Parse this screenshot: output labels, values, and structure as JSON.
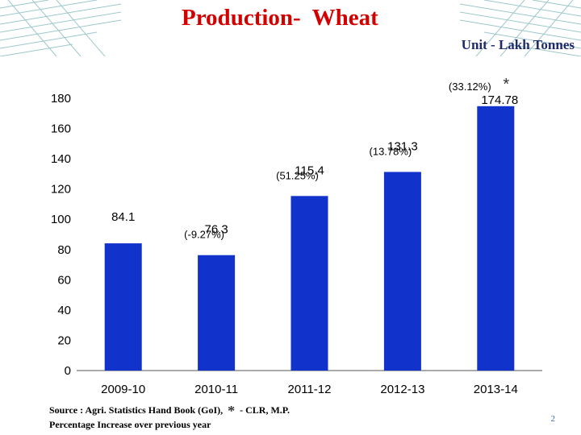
{
  "slide": {
    "title": "Production-  Wheat",
    "unit": "Unit - Lakh Tonnes",
    "source_prefix": "Source  : Agri. Statistics Hand Book (GoI),",
    "source_star": "*",
    "source_suffix": "- CLR, M.P.",
    "note": "Percentage Increase over previous year",
    "page_number": "2"
  },
  "colors": {
    "bar": "#1133cc",
    "title": "#d40000",
    "pattern": "#9cc8cc"
  },
  "chart_data": {
    "type": "bar",
    "categories": [
      "2009-10",
      "2010-11",
      "2011-12",
      "2012-13",
      "2013-14"
    ],
    "values": [
      84.1,
      76.3,
      115.4,
      131.3,
      174.78
    ],
    "value_labels": [
      "84.1",
      "76.3",
      "115.4",
      "131.3",
      "174.78"
    ],
    "pct_labels": [
      "",
      "(-9.27%)",
      "(51.25%)",
      "(13.78%)",
      "(33.12%)"
    ],
    "asterisk": [
      "",
      "",
      "",
      "",
      "*"
    ],
    "y_ticks": [
      0,
      20,
      40,
      60,
      80,
      100,
      120,
      140,
      160,
      180
    ],
    "ylim": [
      0,
      180
    ],
    "grid": false,
    "legend": "none"
  }
}
